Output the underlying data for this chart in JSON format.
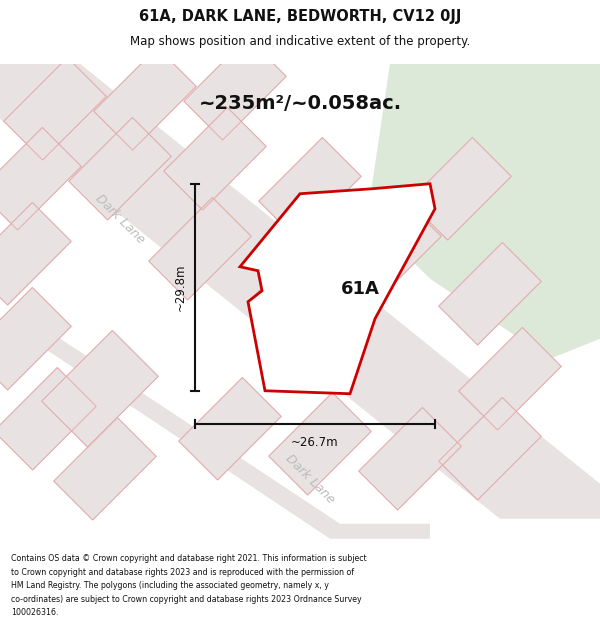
{
  "title_line1": "61A, DARK LANE, BEDWORTH, CV12 0JJ",
  "title_line2": "Map shows position and indicative extent of the property.",
  "area_text": "~235m²/~0.058ac.",
  "label_61A": "61A",
  "dim_width": "~26.7m",
  "dim_height": "~29.8m",
  "road_label1": "Dark Lane",
  "road_label2": "Dark Lane",
  "footer_lines": [
    "Contains OS data © Crown copyright and database right 2021. This information is subject",
    "to Crown copyright and database rights 2023 and is reproduced with the permission of",
    "HM Land Registry. The polygons (including the associated geometry, namely x, y",
    "co-ordinates) are subject to Crown copyright and database rights 2023 Ordnance Survey",
    "100026316."
  ],
  "map_bg": "#f2eded",
  "green_color": "#dce8d8",
  "plot_fill": "#e8e2e2",
  "plot_edge_pink": "#e8aaaa",
  "plot_edge_gray": "#cccccc",
  "road_fill": "#eeeeee",
  "prop_fill": "#ffffff",
  "prop_edge": "#cc0000",
  "title_bg": "#ffffff",
  "footer_bg": "#ffffff",
  "dim_color": "#111111",
  "road_text_color": "#bbbbbb",
  "text_dark": "#111111"
}
